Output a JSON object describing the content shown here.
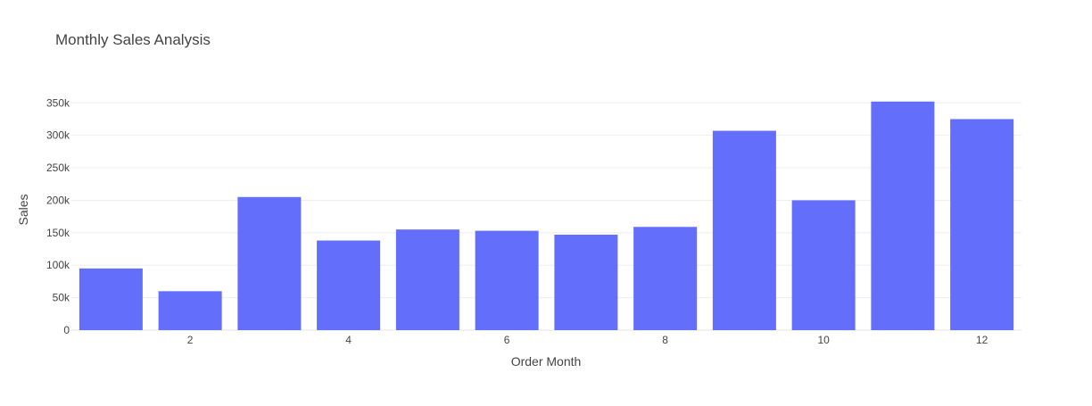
{
  "chart_data": {
    "type": "bar",
    "title": "Monthly Sales Analysis",
    "xlabel": "Order Month",
    "ylabel": "Sales",
    "x": [
      1,
      2,
      3,
      4,
      5,
      6,
      7,
      8,
      9,
      10,
      11,
      12
    ],
    "values": [
      95000,
      60000,
      205000,
      138000,
      155000,
      153000,
      147000,
      159000,
      307000,
      200000,
      352000,
      325000
    ],
    "xlim": [
      0.5,
      12.5
    ],
    "ylim": [
      0,
      371000
    ],
    "x_ticks": [
      2,
      4,
      6,
      8,
      10,
      12
    ],
    "y_ticks": [
      0,
      50000,
      100000,
      150000,
      200000,
      250000,
      300000,
      350000
    ],
    "y_tick_labels": [
      "0",
      "50k",
      "100k",
      "150k",
      "200k",
      "250k",
      "300k",
      "350k"
    ],
    "bar_color": "#636efa",
    "grid": true,
    "legend": "none"
  }
}
